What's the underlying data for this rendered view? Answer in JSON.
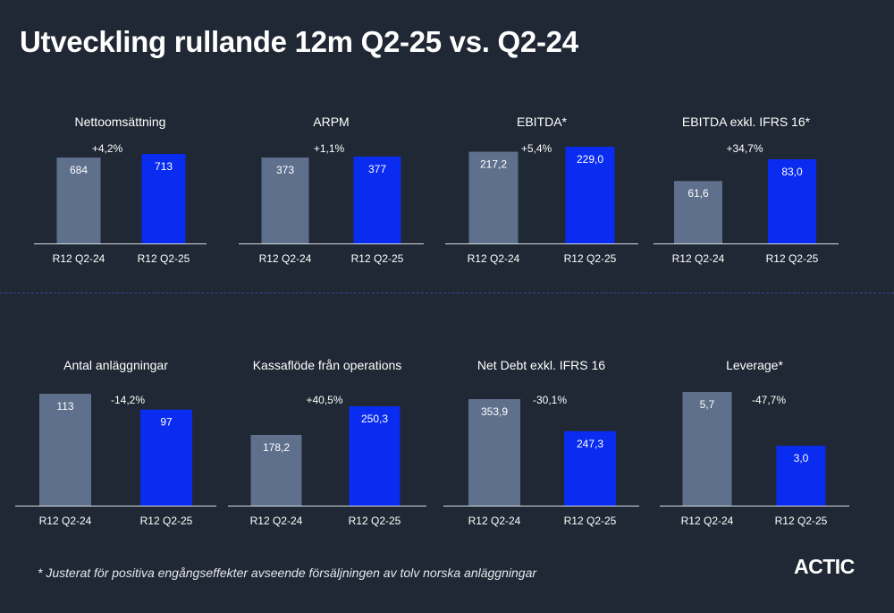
{
  "title": "Utveckling rullande 12m Q2-25 vs. Q2-24",
  "footnote": "* Justerat för positiva engångseffekter avseende försäljningen av tolv norska anläggningar",
  "logo": "ACTIC",
  "colors": {
    "background": "#1f2834",
    "prior_bar": "#5f708c",
    "current_bar": "#0a2cf0",
    "text": "#ffffff"
  },
  "chart_data": [
    {
      "type": "bar",
      "title": "Nettoomsättning",
      "categories": [
        "R12 Q2-24",
        "R12 Q2-25"
      ],
      "values": [
        684,
        713
      ],
      "value_labels": [
        "684",
        "713"
      ],
      "change_label": "+4,2%"
    },
    {
      "type": "bar",
      "title": "ARPM",
      "categories": [
        "R12 Q2-24",
        "R12 Q2-25"
      ],
      "values": [
        373,
        377
      ],
      "value_labels": [
        "373",
        "377"
      ],
      "change_label": "+1,1%"
    },
    {
      "type": "bar",
      "title": "EBITDA*",
      "categories": [
        "R12 Q2-24",
        "R12 Q2-25"
      ],
      "values": [
        217.2,
        229.0
      ],
      "value_labels": [
        "217,2",
        "229,0"
      ],
      "change_label": "+5,4%"
    },
    {
      "type": "bar",
      "title": "EBITDA exkl. IFRS 16*",
      "categories": [
        "R12 Q2-24",
        "R12 Q2-25"
      ],
      "values": [
        61.6,
        83.0
      ],
      "value_labels": [
        "61,6",
        "83,0"
      ],
      "change_label": "+34,7%"
    },
    {
      "type": "bar",
      "title": "Antal anläggningar",
      "categories": [
        "R12 Q2-24",
        "R12 Q2-25"
      ],
      "values": [
        113,
        97
      ],
      "value_labels": [
        "113",
        "97"
      ],
      "change_label": "-14,2%"
    },
    {
      "type": "bar",
      "title": "Kassaflöde från operations",
      "categories": [
        "R12 Q2-24",
        "R12 Q2-25"
      ],
      "values": [
        178.2,
        250.3
      ],
      "value_labels": [
        "178,2",
        "250,3"
      ],
      "change_label": "+40,5%"
    },
    {
      "type": "bar",
      "title": "Net Debt exkl. IFRS 16",
      "categories": [
        "R12 Q2-24",
        "R12 Q2-25"
      ],
      "values": [
        353.9,
        247.3
      ],
      "value_labels": [
        "353,9",
        "247,3"
      ],
      "change_label": "-30,1%"
    },
    {
      "type": "bar",
      "title": "Leverage*",
      "categories": [
        "R12 Q2-24",
        "R12 Q2-25"
      ],
      "values": [
        5.7,
        3.0
      ],
      "value_labels": [
        "5,7",
        "3,0"
      ],
      "change_label": "-47,7%"
    }
  ]
}
